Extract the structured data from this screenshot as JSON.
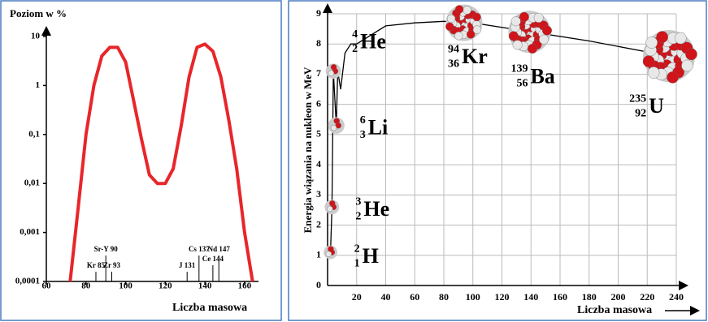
{
  "chart_data": [
    {
      "type": "line",
      "title": "Poziom w %",
      "x_label": "Liczba masowa",
      "log_y": true,
      "color": "#e8262a",
      "x": [
        72,
        76,
        80,
        84,
        88,
        92,
        96,
        100,
        104,
        108,
        112,
        116,
        120,
        124,
        128,
        132,
        136,
        140,
        144,
        148,
        152,
        156,
        160,
        164
      ],
      "values": [
        0.0001,
        0.003,
        0.1,
        1,
        4,
        6,
        6,
        3,
        0.5,
        0.08,
        0.015,
        0.01,
        0.01,
        0.02,
        0.15,
        1.5,
        6,
        7,
        5,
        1.5,
        0.2,
        0.02,
        0.001,
        0.0001
      ],
      "xlim": [
        60,
        167
      ],
      "xticks": [
        60,
        80,
        100,
        120,
        140,
        160
      ],
      "ylim": [
        0.0001,
        10
      ],
      "yticks": [
        {
          "value": 0.0001,
          "label": "0,0001"
        },
        {
          "value": 0.001,
          "label": "0,001"
        },
        {
          "value": 0.01,
          "label": "0,01"
        },
        {
          "value": 0.1,
          "label": "0,1"
        },
        1,
        10
      ],
      "annotations": [
        {
          "text": "Kr 85",
          "x": 85
        },
        {
          "text": "Sr-Y 90",
          "x": 90
        },
        {
          "text": "Zr 93",
          "x": 93
        },
        {
          "text": "J 131",
          "x": 131
        },
        {
          "text": "Cs 137",
          "x": 137
        },
        {
          "text": "Ce 144",
          "x": 144
        },
        {
          "text": "Nd 147",
          "x": 147
        }
      ]
    },
    {
      "type": "nuclide",
      "y_label": "Energia wiązania na nukleon w MeV",
      "x_label": "Liczba masowa",
      "grid": true,
      "color": "#000000",
      "x": [
        2,
        3,
        4,
        6,
        7,
        9,
        12,
        16,
        20,
        40,
        60,
        80,
        100,
        140,
        180,
        235
      ],
      "values": [
        1.1,
        2.6,
        7.1,
        5.3,
        7.1,
        6.5,
        7.7,
        8.0,
        8.0,
        8.6,
        8.7,
        8.75,
        8.7,
        8.4,
        8.1,
        7.6
      ],
      "points": [
        {
          "symbol": "H",
          "x": 2,
          "z": 1,
          "y": 1.1
        },
        {
          "symbol": "He",
          "x": 3,
          "z": 2,
          "y": 2.6
        },
        {
          "symbol": "Li",
          "x": 6,
          "z": 3,
          "y": 5.3
        },
        {
          "symbol": "He",
          "x": 4,
          "z": 2,
          "y": 7.1
        },
        {
          "symbol": "Kr",
          "x": 94,
          "z": 36,
          "y": 8.7
        },
        {
          "symbol": "Ba",
          "x": 139,
          "z": 56,
          "y": 8.4
        },
        {
          "symbol": "U",
          "x": 235,
          "z": 92,
          "y": 7.6
        }
      ],
      "xlim": [
        0,
        240
      ],
      "xticks": [
        20,
        40,
        60,
        80,
        100,
        120,
        140,
        160,
        180,
        200,
        220,
        240
      ],
      "ylim": [
        0,
        9
      ],
      "yticks": [
        0,
        1,
        2,
        3,
        4,
        5,
        6,
        7,
        8,
        9
      ]
    }
  ]
}
